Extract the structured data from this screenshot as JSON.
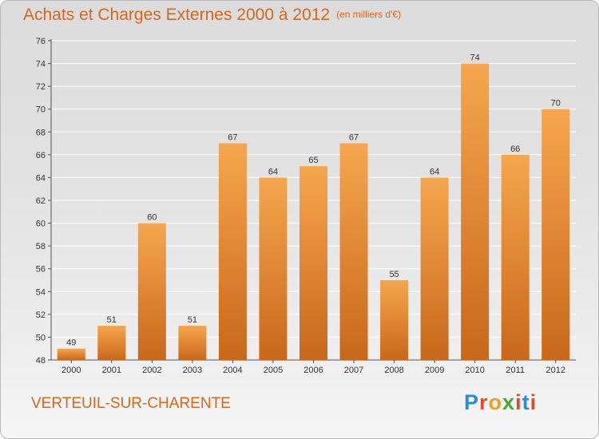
{
  "header": {
    "title": "Achats et Charges Externes 2000 à 2012",
    "unit": "(en milliers d'€)"
  },
  "footer": {
    "commune": "VERTEUIL-SUR-CHARENTE",
    "logo_letters": [
      "P",
      "r",
      "o",
      "x",
      "i",
      "t",
      "i"
    ],
    "logo_colors": [
      "#2e8bd6",
      "#e24a2a",
      "#f0a020",
      "#44aa33",
      "#e24a2a",
      "#2e8bd6",
      "#e24a2a"
    ]
  },
  "colors": {
    "bar_light": "#f6a64f",
    "bar_dark": "#c8681a",
    "text_accent": "#d2691e"
  },
  "chart_data": {
    "type": "bar",
    "title": "Achats et Charges Externes 2000 à 2012",
    "subtitle": "(en milliers d'€)",
    "xlabel": "",
    "ylabel": "",
    "categories": [
      "2000",
      "2001",
      "2002",
      "2003",
      "2004",
      "2005",
      "2006",
      "2007",
      "2008",
      "2009",
      "2010",
      "2011",
      "2012"
    ],
    "values": [
      49,
      51,
      60,
      51,
      67,
      64,
      65,
      67,
      55,
      64,
      74,
      66,
      70
    ],
    "ylim": [
      48,
      76
    ],
    "yticks": [
      48,
      50,
      52,
      54,
      56,
      58,
      60,
      62,
      64,
      66,
      68,
      70,
      72,
      74,
      76
    ],
    "grid": true,
    "legend": "none"
  }
}
